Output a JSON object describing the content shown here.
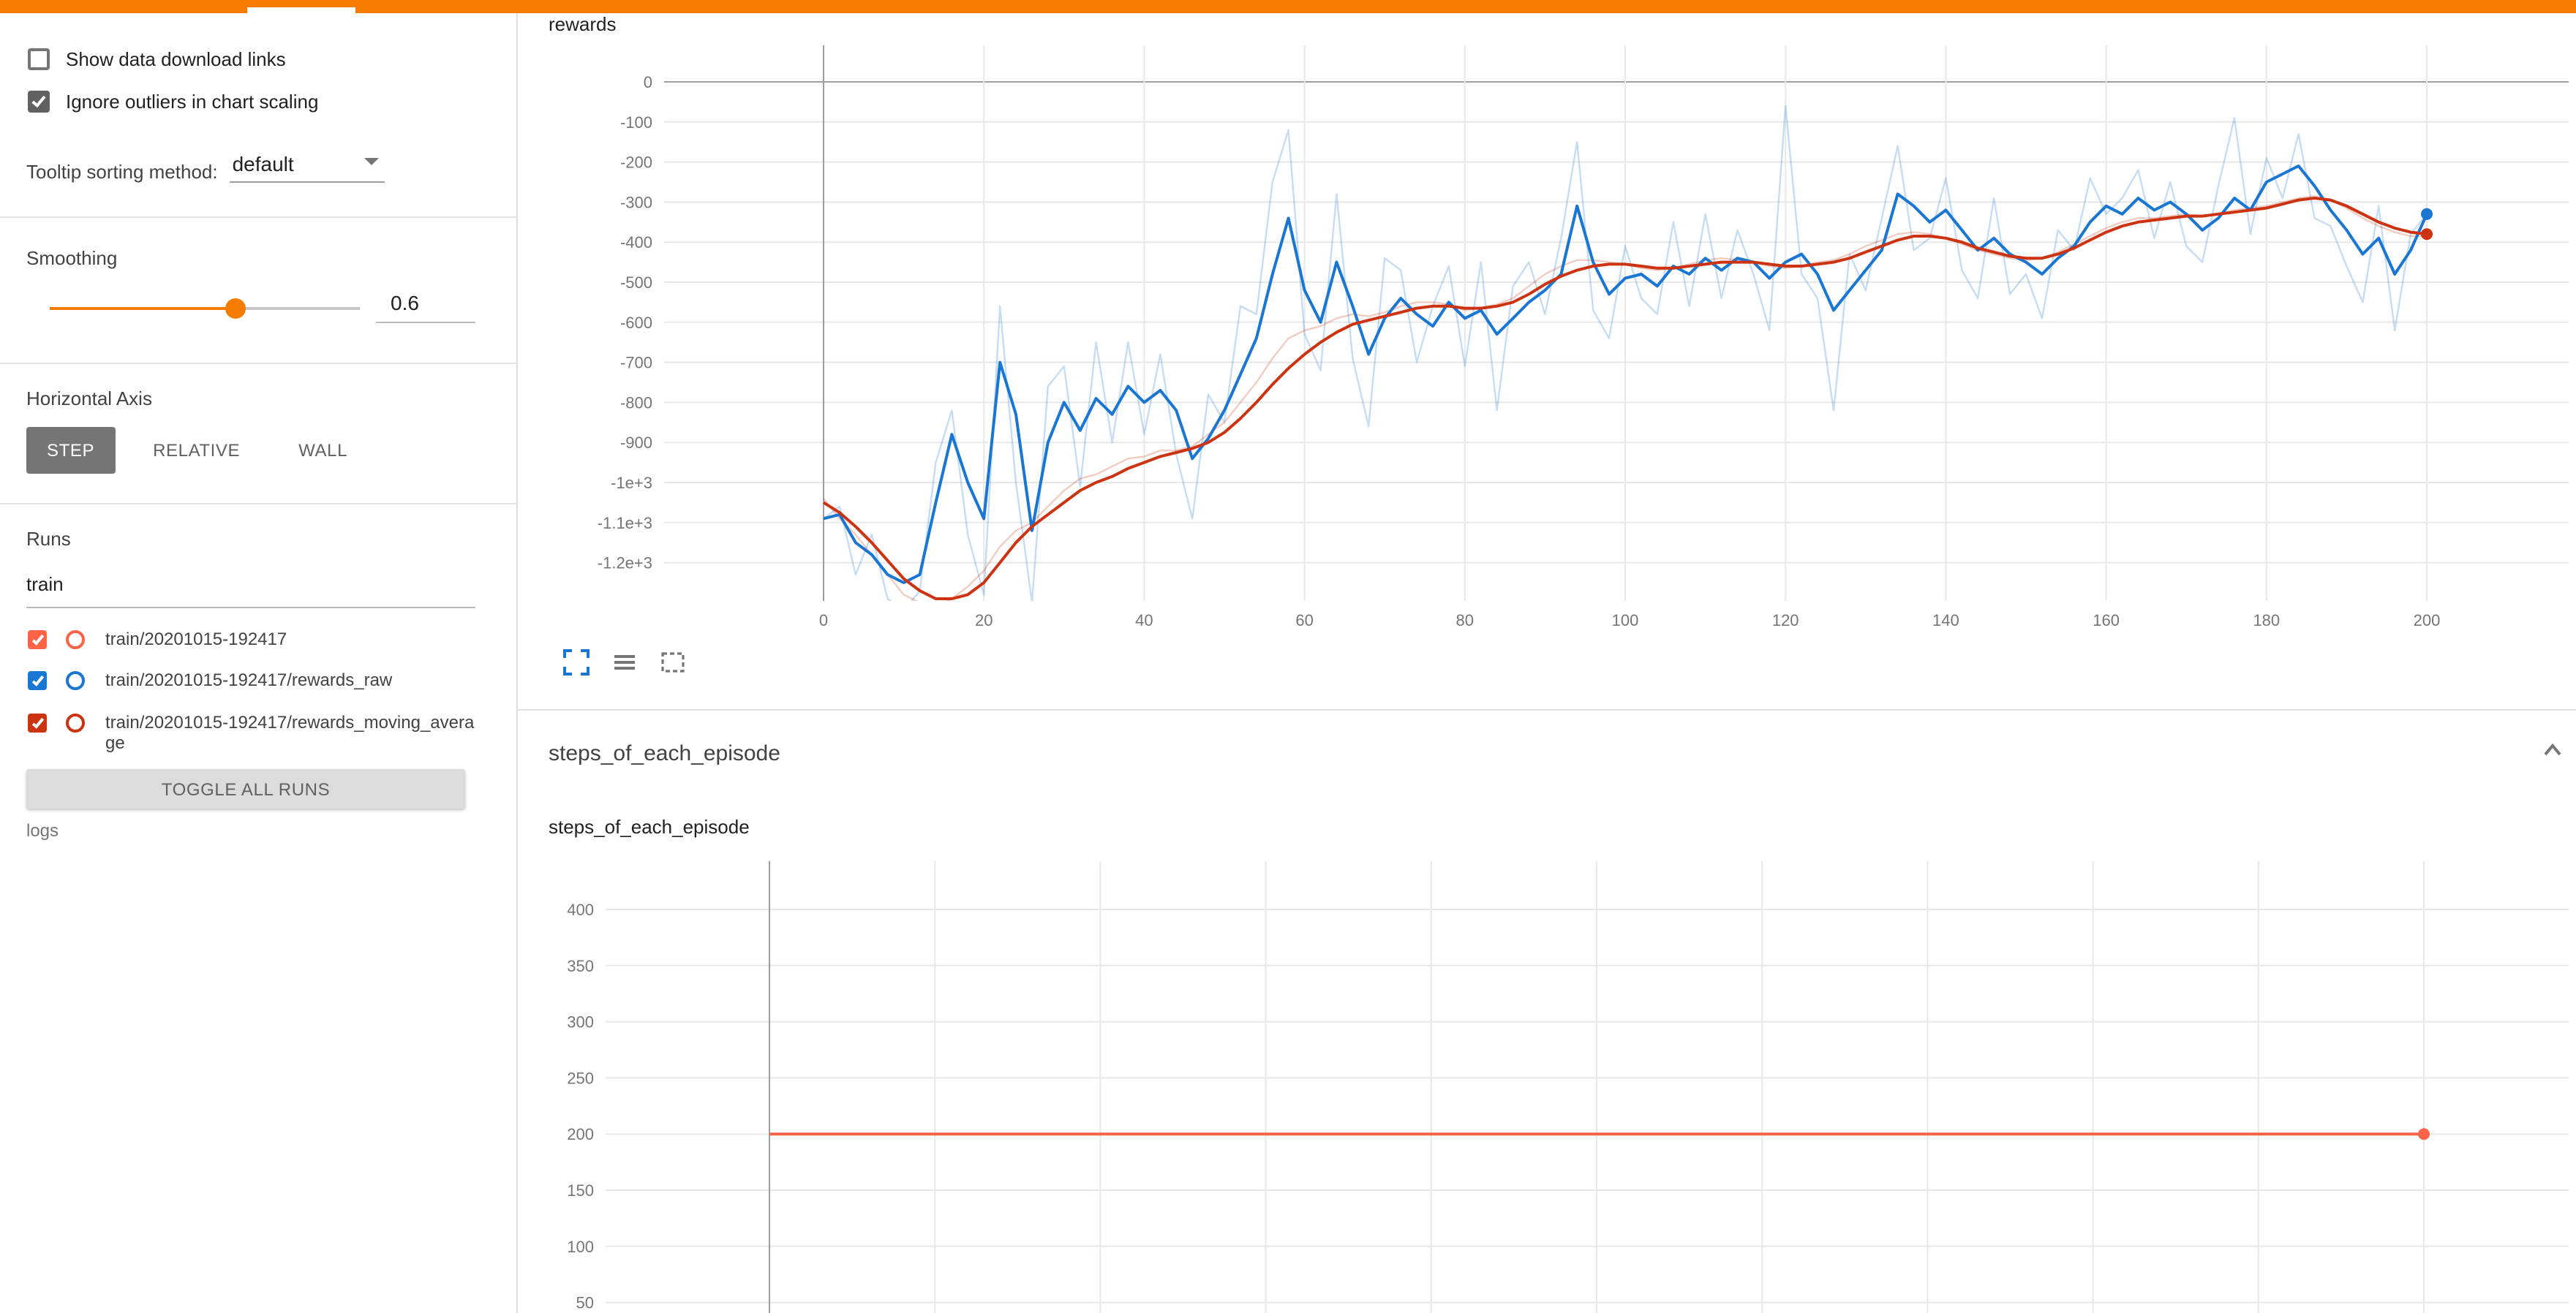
{
  "colors": {
    "topbar": "#f57c00",
    "accent": "#f57c00",
    "run_orange": "#ff6347",
    "run_blue": "#1976d2",
    "run_red": "#cc3311"
  },
  "sidebar": {
    "show_download": {
      "label": "Show data download links",
      "checked": false
    },
    "ignore_outliers": {
      "label": "Ignore outliers in chart scaling",
      "checked": true
    },
    "tooltip_sorting": {
      "label": "Tooltip sorting method:",
      "value": "default"
    },
    "smoothing": {
      "label": "Smoothing",
      "value": "0.6"
    },
    "horizontal_axis": {
      "label": "Horizontal Axis",
      "options": [
        "STEP",
        "RELATIVE",
        "WALL"
      ],
      "selected": "STEP"
    },
    "runs": {
      "label": "Runs",
      "filter_value": "train",
      "items": [
        {
          "label": "train/20201015-192417",
          "color": "#ff6347",
          "checked": true
        },
        {
          "label": "train/20201015-192417/rewards_raw",
          "color": "#1976d2",
          "checked": true
        },
        {
          "label": "train/20201015-192417/rewards_moving_average",
          "color": "#cc3311",
          "checked": true
        }
      ],
      "toggle_all_label": "TOGGLE ALL RUNS",
      "logdir": "logs"
    }
  },
  "main": {
    "rewards_card_title": "rewards",
    "steps_section_title": "steps_of_each_episode",
    "steps_card_title": "steps_of_each_episode"
  },
  "chart_data": [
    {
      "type": "line",
      "title": "rewards",
      "xlim": [
        -20,
        218
      ],
      "ylim": [
        -1296,
        91
      ],
      "grid": true,
      "x_tick_values": [
        0,
        20,
        40,
        60,
        80,
        100,
        120,
        140,
        160,
        180,
        200
      ],
      "x_tick_labels": [
        "0",
        "20",
        "40",
        "60",
        "80",
        "100",
        "120",
        "140",
        "160",
        "180",
        "200"
      ],
      "y_tick_values": [
        0,
        -100,
        -200,
        -300,
        -400,
        -500,
        -600,
        -700,
        -800,
        -900,
        -1000,
        -1100,
        -1200
      ],
      "y_tick_labels": [
        "0",
        "-100",
        "-200",
        "-300",
        "-400",
        "-500",
        "-600",
        "-700",
        "-800",
        "-900",
        "-1e+3",
        "-1.1e+3",
        "-1.2e+3"
      ],
      "x": [
        0,
        2,
        4,
        6,
        8,
        10,
        12,
        14,
        16,
        18,
        20,
        22,
        24,
        26,
        28,
        30,
        32,
        34,
        36,
        38,
        40,
        42,
        44,
        46,
        48,
        50,
        52,
        54,
        56,
        58,
        60,
        62,
        64,
        66,
        68,
        70,
        72,
        74,
        76,
        78,
        80,
        82,
        84,
        86,
        88,
        90,
        92,
        94,
        96,
        98,
        100,
        102,
        104,
        106,
        108,
        110,
        112,
        114,
        116,
        118,
        120,
        122,
        124,
        126,
        128,
        130,
        132,
        134,
        136,
        138,
        140,
        142,
        144,
        146,
        148,
        150,
        152,
        154,
        156,
        158,
        160,
        162,
        164,
        166,
        168,
        170,
        172,
        174,
        176,
        178,
        180,
        182,
        184,
        186,
        188,
        190,
        192,
        194,
        196,
        198,
        200
      ],
      "series": [
        {
          "name": "train/20201015-192417/rewards_raw (raw)",
          "color": "#1976d2",
          "opacity": 0.25,
          "width": 1.2,
          "y": [
            -1090,
            -1060,
            -1230,
            -1130,
            -1290,
            -1320,
            -1270,
            -950,
            -820,
            -1130,
            -1280,
            -560,
            -1000,
            -1300,
            -760,
            -710,
            -1010,
            -650,
            -900,
            -650,
            -880,
            -680,
            -930,
            -1090,
            -780,
            -850,
            -560,
            -580,
            -250,
            -120,
            -630,
            -720,
            -280,
            -690,
            -860,
            -440,
            -470,
            -700,
            -560,
            -460,
            -710,
            -450,
            -820,
            -510,
            -450,
            -580,
            -390,
            -150,
            -570,
            -640,
            -410,
            -540,
            -580,
            -350,
            -560,
            -330,
            -540,
            -370,
            -480,
            -620,
            -60,
            -480,
            -540,
            -820,
            -430,
            -520,
            -340,
            -160,
            -420,
            -390,
            -240,
            -470,
            -540,
            -290,
            -530,
            -480,
            -590,
            -370,
            -420,
            -240,
            -330,
            -290,
            -220,
            -390,
            -250,
            -410,
            -450,
            -260,
            -90,
            -380,
            -190,
            -290,
            -130,
            -340,
            -360,
            -460,
            -550,
            -310,
            -620,
            -380,
            -330
          ]
        },
        {
          "name": "train/20201015-192417/rewards_moving_average (raw)",
          "color": "#cc3311",
          "opacity": 0.25,
          "width": 1.2,
          "y": [
            -1040,
            -1090,
            -1130,
            -1180,
            -1230,
            -1280,
            -1300,
            -1310,
            -1290,
            -1260,
            -1220,
            -1160,
            -1120,
            -1100,
            -1060,
            -1020,
            -990,
            -980,
            -960,
            -940,
            -935,
            -920,
            -920,
            -910,
            -880,
            -850,
            -800,
            -750,
            -690,
            -640,
            -620,
            -610,
            -590,
            -580,
            -585,
            -575,
            -560,
            -550,
            -550,
            -555,
            -570,
            -565,
            -555,
            -540,
            -510,
            -480,
            -460,
            -445,
            -445,
            -450,
            -455,
            -465,
            -470,
            -465,
            -455,
            -445,
            -440,
            -445,
            -450,
            -460,
            -465,
            -460,
            -450,
            -445,
            -430,
            -410,
            -395,
            -380,
            -375,
            -380,
            -390,
            -405,
            -420,
            -430,
            -440,
            -445,
            -440,
            -425,
            -405,
            -385,
            -365,
            -350,
            -340,
            -340,
            -335,
            -330,
            -335,
            -330,
            -320,
            -315,
            -310,
            -300,
            -290,
            -285,
            -295,
            -315,
            -340,
            -360,
            -375,
            -385,
            -385
          ]
        },
        {
          "name": "train/20201015-192417/rewards_raw (smoothed)",
          "color": "#1976d2",
          "opacity": 1,
          "width": 2,
          "end_dot": true,
          "y": [
            -1090,
            -1080,
            -1150,
            -1180,
            -1230,
            -1250,
            -1230,
            -1050,
            -880,
            -1000,
            -1090,
            -700,
            -830,
            -1120,
            -900,
            -800,
            -870,
            -790,
            -830,
            -760,
            -800,
            -770,
            -820,
            -940,
            -890,
            -820,
            -730,
            -640,
            -480,
            -340,
            -520,
            -600,
            -450,
            -560,
            -680,
            -590,
            -540,
            -580,
            -610,
            -550,
            -590,
            -570,
            -630,
            -590,
            -550,
            -520,
            -480,
            -310,
            -450,
            -530,
            -490,
            -480,
            -510,
            -460,
            -480,
            -440,
            -470,
            -440,
            -450,
            -490,
            -450,
            -430,
            -480,
            -570,
            -520,
            -470,
            -420,
            -280,
            -310,
            -350,
            -320,
            -370,
            -420,
            -390,
            -430,
            -450,
            -480,
            -440,
            -410,
            -350,
            -310,
            -330,
            -290,
            -320,
            -300,
            -330,
            -370,
            -340,
            -290,
            -320,
            -250,
            -230,
            -210,
            -260,
            -320,
            -370,
            -430,
            -390,
            -480,
            -420,
            -330
          ]
        },
        {
          "name": "train/20201015-192417/rewards_moving_average (smoothed)",
          "color": "#cc3311",
          "opacity": 1,
          "width": 2,
          "end_dot": true,
          "y": [
            -1050,
            -1075,
            -1110,
            -1150,
            -1195,
            -1240,
            -1270,
            -1290,
            -1290,
            -1280,
            -1250,
            -1200,
            -1150,
            -1110,
            -1080,
            -1050,
            -1020,
            -1000,
            -985,
            -965,
            -950,
            -935,
            -925,
            -915,
            -900,
            -875,
            -840,
            -800,
            -755,
            -715,
            -680,
            -650,
            -625,
            -605,
            -595,
            -585,
            -575,
            -565,
            -560,
            -560,
            -565,
            -565,
            -560,
            -550,
            -530,
            -505,
            -485,
            -470,
            -460,
            -455,
            -455,
            -460,
            -465,
            -465,
            -460,
            -455,
            -450,
            -450,
            -450,
            -455,
            -460,
            -460,
            -455,
            -450,
            -440,
            -425,
            -410,
            -395,
            -385,
            -385,
            -390,
            -400,
            -415,
            -425,
            -435,
            -440,
            -440,
            -430,
            -415,
            -395,
            -375,
            -360,
            -350,
            -345,
            -340,
            -335,
            -335,
            -330,
            -325,
            -320,
            -315,
            -305,
            -295,
            -290,
            -295,
            -310,
            -330,
            -350,
            -365,
            -375,
            -380
          ]
        }
      ]
    },
    {
      "type": "line",
      "title": "steps_of_each_episode",
      "xlim": [
        -20,
        218
      ],
      "ylim": [
        40,
        443
      ],
      "grid": true,
      "x_tick_values": [
        0,
        20,
        40,
        60,
        80,
        100,
        120,
        140,
        160,
        180,
        200
      ],
      "y_tick_values": [
        400,
        350,
        300,
        250,
        200,
        150,
        100,
        50
      ],
      "y_tick_labels": [
        "400",
        "350",
        "300",
        "250",
        "200",
        "150",
        "100",
        "50"
      ],
      "series": [
        {
          "name": "train/20201015-192417",
          "color": "#ff6347",
          "opacity": 1,
          "width": 2,
          "end_dot": true,
          "x": [
            0,
            200
          ],
          "y": [
            200,
            200
          ]
        }
      ]
    }
  ]
}
